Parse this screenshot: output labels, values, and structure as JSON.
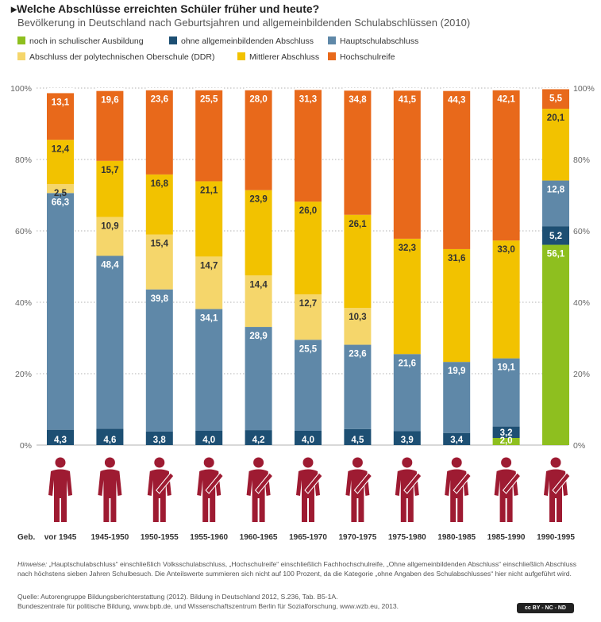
{
  "header": {
    "title": "Welche Abschlüsse erreichten Schüler früher und heute?",
    "subtitle": "Bevölkerung in Deutschland nach Geburtsjahren und allgemeinbildenden Schulabschlüssen (2010)"
  },
  "colors": {
    "schulisch": "#8ebf1f",
    "ohne": "#1d4f73",
    "haupt": "#5f88a8",
    "ddr": "#f5d66b",
    "mittlerer": "#f2c200",
    "hochschul": "#e8691b",
    "figure": "#9e1b32",
    "grid": "#999999"
  },
  "chart_data": {
    "type": "bar",
    "stacked": true,
    "ylim": [
      0,
      100
    ],
    "yticks": [
      "0%",
      "20%",
      "40%",
      "60%",
      "80%",
      "100%"
    ],
    "xlabel": "Geb.",
    "categories": [
      "vor 1945",
      "1945-1950",
      "1950-1955",
      "1955-1960",
      "1960-1965",
      "1965-1970",
      "1970-1975",
      "1975-1980",
      "1980-1985",
      "1985-1990",
      "1990-1995"
    ],
    "series": [
      {
        "key": "schulisch",
        "name": "noch in schulischer Ausbildung",
        "values": [
          null,
          null,
          null,
          null,
          null,
          null,
          null,
          null,
          null,
          2.0,
          56.1
        ],
        "labels": [
          "",
          "",
          "",
          "",
          "",
          "",
          "",
          "",
          "",
          "2,0",
          "56,1"
        ]
      },
      {
        "key": "ohne",
        "name": "ohne allgemeinbildenden Abschluss",
        "values": [
          4.3,
          4.6,
          3.8,
          4.0,
          4.2,
          4.0,
          4.5,
          3.9,
          3.4,
          3.2,
          5.2
        ],
        "labels": [
          "4,3",
          "4,6",
          "3,8",
          "4,0",
          "4,2",
          "4,0",
          "4,5",
          "3,9",
          "3,4",
          "3,2",
          "5,2"
        ]
      },
      {
        "key": "haupt",
        "name": "Hauptschulabschluss",
        "values": [
          66.3,
          48.4,
          39.8,
          34.1,
          28.9,
          25.5,
          23.6,
          21.6,
          19.9,
          19.1,
          12.8
        ],
        "labels": [
          "66,3",
          "48,4",
          "39,8",
          "34,1",
          "28,9",
          "25,5",
          "23,6",
          "21,6",
          "19,9",
          "19,1",
          "12,8"
        ]
      },
      {
        "key": "ddr",
        "name": "Abschluss der polytechnischen Oberschule (DDR)",
        "values": [
          2.5,
          10.9,
          15.4,
          14.7,
          14.4,
          12.7,
          10.3,
          null,
          null,
          null,
          null
        ],
        "labels": [
          "2,5",
          "10,9",
          "15,4",
          "14,7",
          "14,4",
          "12,7",
          "10,3",
          "",
          "",
          "",
          ""
        ]
      },
      {
        "key": "mittlerer",
        "name": "Mittlerer Abschluss",
        "values": [
          12.4,
          15.7,
          16.8,
          21.1,
          23.9,
          26.0,
          26.1,
          32.3,
          31.6,
          33.0,
          20.1
        ],
        "labels": [
          "12,4",
          "15,7",
          "16,8",
          "21,1",
          "23,9",
          "26,0",
          "26,1",
          "32,3",
          "31,6",
          "33,0",
          "20,1"
        ]
      },
      {
        "key": "hochschul",
        "name": "Hochschulreife",
        "values": [
          13.1,
          19.6,
          23.6,
          25.5,
          28.0,
          31.3,
          34.8,
          41.5,
          44.3,
          42.1,
          5.5
        ],
        "labels": [
          "13,1",
          "19,6",
          "23,6",
          "25,5",
          "28,0",
          "31,3",
          "34,8",
          "41,5",
          "44,3",
          "42,1",
          "5,5"
        ]
      }
    ]
  },
  "footer": {
    "hint_label": "Hinweise:",
    "hint_text": " „Hauptschulabschluss“ einschließlich Volksschulabschluss, „Hochschulreife“ einschließlich Fachhochschulreife, „Ohne allgemeinbildenden Abschluss“ einschließlich Abschluss nach höchstens sieben Jahren Schulbesuch. Die Anteilswerte summieren sich nicht auf 100 Prozent, da die Kategorie „ohne Angaben des Schulabschlusses“ hier nicht aufgeführt wird.",
    "source_line1": "Quelle: Autorengruppe Bildungsberichterstattung (2012). Bildung in Deutschland 2012, S.236, Tab. B5-1A.",
    "source_line2": "Bundeszentrale für politische Bildung, www.bpb.de, und Wissenschaftszentrum Berlin für Sozialforschung, www.wzb.eu, 2013.",
    "license": "cc BY - NC - ND"
  }
}
